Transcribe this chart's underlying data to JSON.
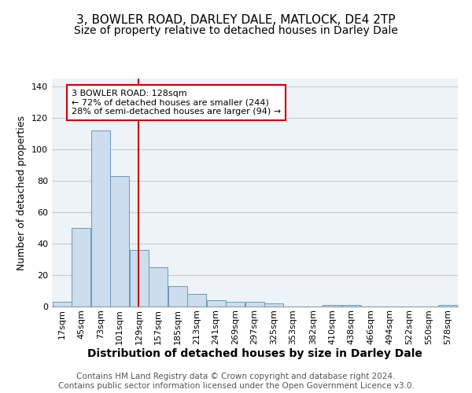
{
  "title1": "3, BOWLER ROAD, DARLEY DALE, MATLOCK, DE4 2TP",
  "title2": "Size of property relative to detached houses in Darley Dale",
  "xlabel": "Distribution of detached houses by size in Darley Dale",
  "ylabel": "Number of detached properties",
  "footnote1": "Contains HM Land Registry data © Crown copyright and database right 2024.",
  "footnote2": "Contains public sector information licensed under the Open Government Licence v3.0.",
  "annotation_line1": "3 BOWLER ROAD: 128sqm",
  "annotation_line2": "← 72% of detached houses are smaller (244)",
  "annotation_line3": "28% of semi-detached houses are larger (94) →",
  "bins": [
    17,
    45,
    73,
    101,
    129,
    157,
    185,
    213,
    241,
    269,
    297,
    325,
    353,
    382,
    410,
    438,
    466,
    494,
    522,
    550,
    578
  ],
  "bar_heights": [
    3,
    50,
    112,
    83,
    36,
    25,
    13,
    8,
    4,
    3,
    3,
    2,
    0,
    0,
    1,
    1,
    0,
    0,
    0,
    0,
    1
  ],
  "bar_color": "#ccdded",
  "bar_edge_color": "#6699bb",
  "bin_width": 28,
  "red_line_x": 128,
  "ylim": [
    0,
    145
  ],
  "yticks": [
    0,
    20,
    40,
    60,
    80,
    100,
    120,
    140
  ],
  "xlim_left": 3,
  "xlim_right": 606,
  "grid_color": "#cccccc",
  "annotation_box_color": "#cc0000",
  "red_line_color": "#cc0000",
  "title1_fontsize": 11,
  "title2_fontsize": 10,
  "xlabel_fontsize": 10,
  "ylabel_fontsize": 9,
  "tick_fontsize": 8,
  "footnote_fontsize": 7.5,
  "bg_color": "#eef3f8"
}
